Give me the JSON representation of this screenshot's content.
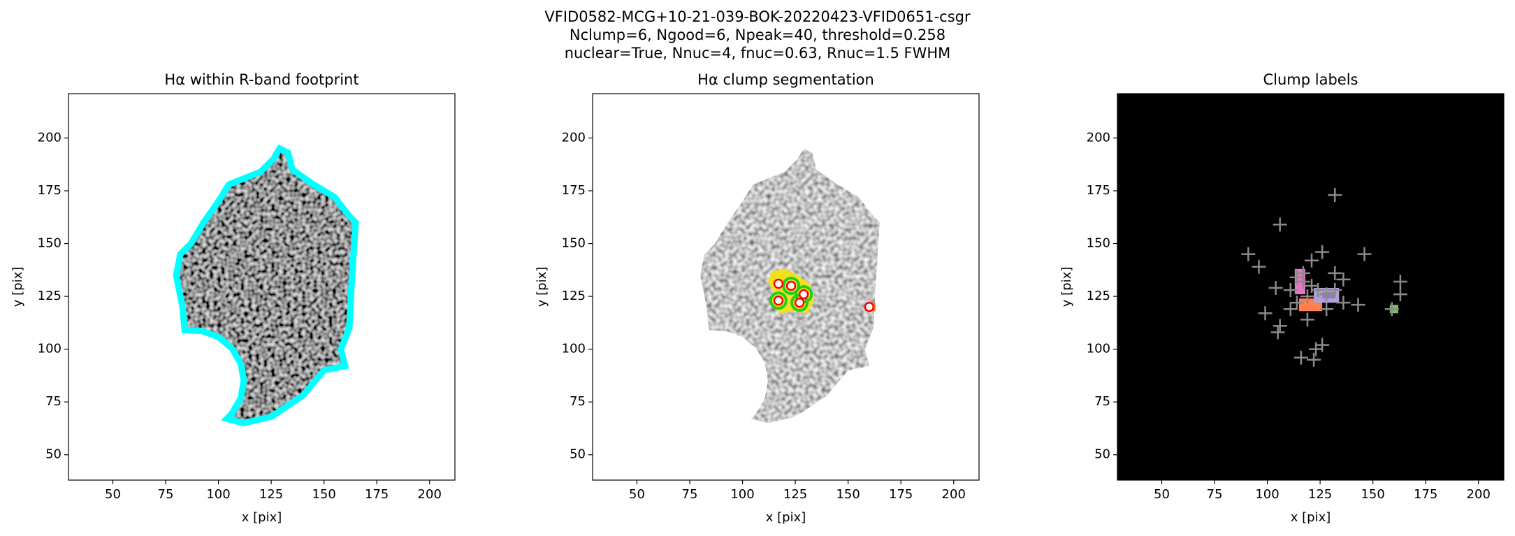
{
  "suptitle": [
    "VFID0582-MCG+10-21-039-BOK-20220423-VFID0651-csgr",
    "Nclump=6, Ngood=6, Npeak=40, threshold=0.258",
    "nuclear=True, Nnuc=4, fnuc=0.63, Rnuc=1.5 FWHM"
  ],
  "chart_data": [
    {
      "type": "image",
      "title": "Hα within R-band footprint",
      "xlabel": "x [pix]",
      "ylabel": "y [pix]",
      "xlim": [
        29,
        212
      ],
      "ylim": [
        38,
        221
      ],
      "xticks": [
        50,
        75,
        100,
        125,
        150,
        175,
        200
      ],
      "yticks": [
        50,
        75,
        100,
        125,
        150,
        175,
        200
      ]
    },
    {
      "type": "scatter",
      "title": "Hα clump segmentation",
      "xlabel": "x [pix]",
      "ylabel": "y [pix]",
      "xlim": [
        29,
        212
      ],
      "ylim": [
        38,
        221
      ],
      "xticks": [
        50,
        75,
        100,
        125,
        150,
        175,
        200
      ],
      "yticks": [
        50,
        75,
        100,
        125,
        150,
        175,
        200
      ],
      "series": [
        {
          "marker": "ring",
          "color": "#22cc22",
          "x": [
            117,
            123,
            127,
            129
          ],
          "y": [
            123,
            130,
            122,
            126
          ]
        },
        {
          "marker": "circle",
          "color": "#ff0000",
          "x": [
            117,
            123,
            129,
            117,
            127,
            160
          ],
          "y": [
            131,
            130,
            126,
            123,
            122,
            120
          ]
        }
      ]
    },
    {
      "type": "scatter",
      "title": "Clump labels",
      "xlabel": "x [pix]",
      "ylabel": "y [pix]",
      "background": "#000000",
      "xlim": [
        29,
        212
      ],
      "ylim": [
        38,
        221
      ],
      "xticks": [
        50,
        75,
        100,
        125,
        150,
        175,
        200
      ],
      "yticks": [
        50,
        75,
        100,
        125,
        150,
        175,
        200
      ],
      "series": [
        {
          "marker": "plus",
          "color": "#8a8a8a",
          "x": [
            106,
            91,
            96,
            146,
            126,
            121,
            117,
            132,
            136,
            163,
            163,
            104,
            111,
            111,
            99,
            106,
            105,
            119,
            128,
            143,
            136,
            126,
            123,
            116,
            122,
            114,
            117,
            121,
            128,
            132,
            124,
            119,
            114,
            159,
            132
          ],
          "y": [
            159,
            145,
            139,
            145,
            146,
            142,
            136,
            136,
            133,
            132,
            126,
            129,
            128,
            119,
            117,
            111,
            108,
            114,
            119,
            121,
            122,
            102,
            100,
            96,
            95,
            134,
            132,
            130,
            126,
            128,
            128,
            125,
            122,
            119,
            173
          ]
        }
      ]
    }
  ]
}
